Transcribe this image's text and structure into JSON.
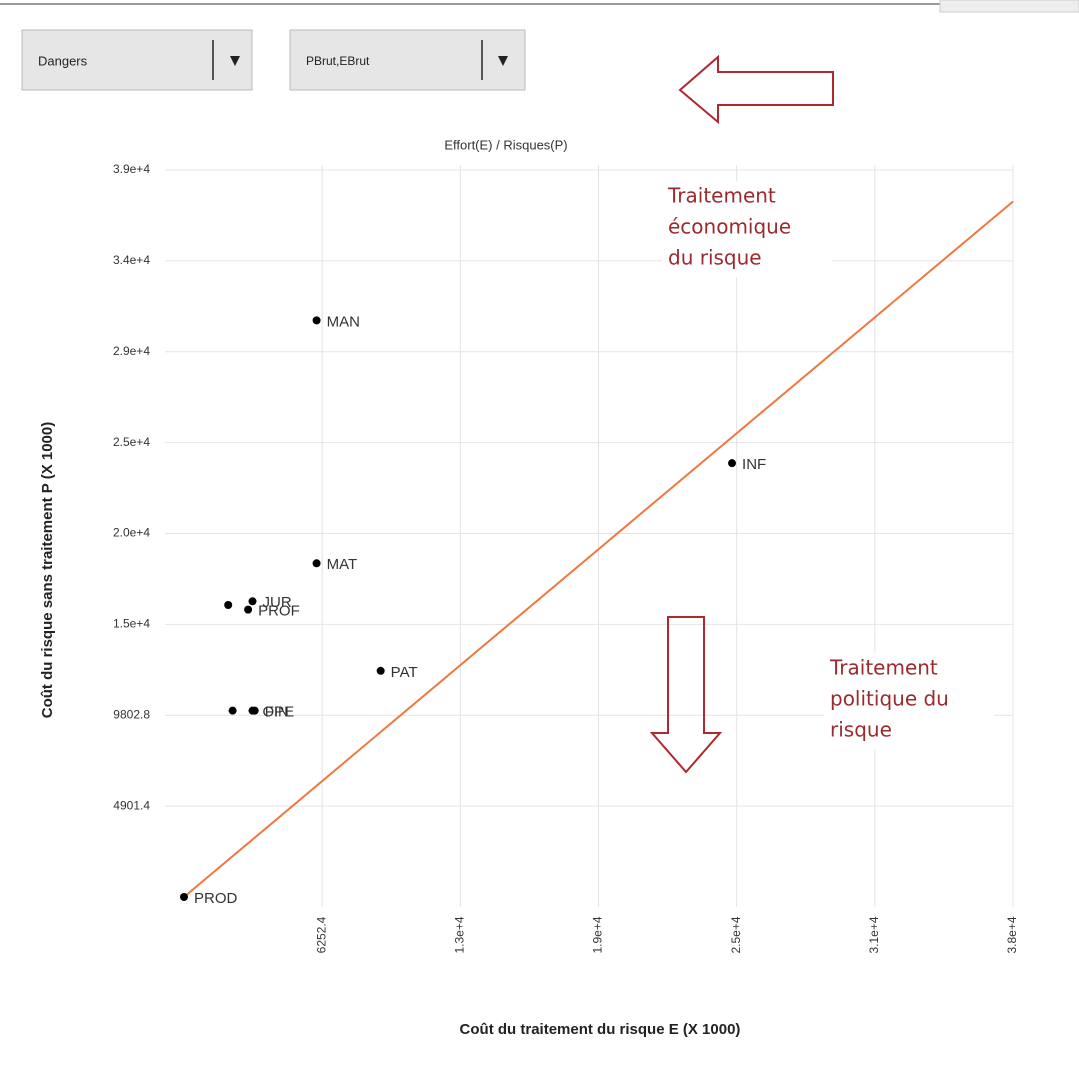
{
  "dropdowns": [
    "Dangers",
    "PBrut,EBrut"
  ],
  "chart_data": {
    "type": "scatter",
    "title": "Effort(E) / Risques(P)",
    "x_label": "Coût du traitement du risque E (X 1000)",
    "y_label": "Coût du risque sans traitement P (X 1000)",
    "labels": [
      "MAN",
      "INF",
      "MAT",
      null,
      "JUR",
      "PROF",
      "PAT",
      null,
      "OPE",
      "FIN",
      "PROD"
    ],
    "x": [
      6000,
      24800,
      6000,
      2000,
      3100,
      2900,
      8900,
      2200,
      3100,
      3200,
      0
    ],
    "values": [
      31100,
      23400,
      18000,
      15750,
      15950,
      15500,
      12200,
      10050,
      10050,
      10050,
      0
    ],
    "color": "#000000",
    "line": {
      "x": [
        0,
        37514.4
      ],
      "values": [
        0,
        37514.4
      ],
      "color": "#f07840"
    },
    "xlim": [
      0,
      37514.4
    ],
    "ylim": [
      0,
      39211.2
    ],
    "xticks": [
      6252.4,
      {
        "value": 12504.8,
        "label": "1.3e+4"
      },
      {
        "value": 18757.2,
        "label": "1.9e+4"
      },
      {
        "value": 25009.6,
        "label": "2.5e+4"
      },
      {
        "value": 31262,
        "label": "3.1e+4"
      },
      {
        "value": 37514.4,
        "label": "3.8e+4"
      }
    ],
    "yticks": [
      4901.4,
      9802.8,
      {
        "value": 14704.2,
        "label": "1.5e+4"
      },
      {
        "value": 19605.6,
        "label": "2.0e+4"
      },
      {
        "value": 24507,
        "label": "2.5e+4"
      },
      {
        "value": 29408.4,
        "label": "2.9e+4"
      },
      {
        "value": 34309.8,
        "label": "3.4e+4"
      },
      {
        "value": 39211.2,
        "label": "3.9e+4"
      }
    ],
    "grid": true,
    "annotations": [
      {
        "lines": [
          "Traitement",
          "économique",
          "du risque"
        ]
      },
      {
        "lines": [
          "Traitement",
          "politique du",
          "risque"
        ]
      }
    ]
  }
}
